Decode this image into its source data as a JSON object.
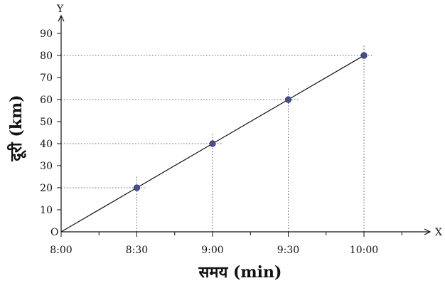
{
  "chart_data": {
    "type": "line",
    "x": [
      "8:00",
      "8:30",
      "9:00",
      "9:30",
      "10:00"
    ],
    "series": [
      {
        "x": [
          "8:00",
          "8:30",
          "9:00",
          "9:30",
          "10:00"
        ],
        "values": [
          0,
          20,
          40,
          60,
          80
        ]
      }
    ],
    "marked_points": [
      {
        "x": "8:30",
        "y": 20
      },
      {
        "x": "9:00",
        "y": 40
      },
      {
        "x": "9:30",
        "y": 60
      },
      {
        "x": "10:00",
        "y": 80
      }
    ],
    "xticks": [
      "8:00",
      "8:30",
      "9:00",
      "9:30",
      "10:00"
    ],
    "yticks": [
      10,
      20,
      30,
      40,
      50,
      60,
      70,
      80,
      90
    ],
    "origin_label": "O",
    "x_axis_letter": "X",
    "y_axis_letter": "Y",
    "xlabel": "समय (min)",
    "ylabel": "दूरी (km)",
    "ylim": [
      0,
      90
    ],
    "grid": false,
    "guide_lines": true
  }
}
